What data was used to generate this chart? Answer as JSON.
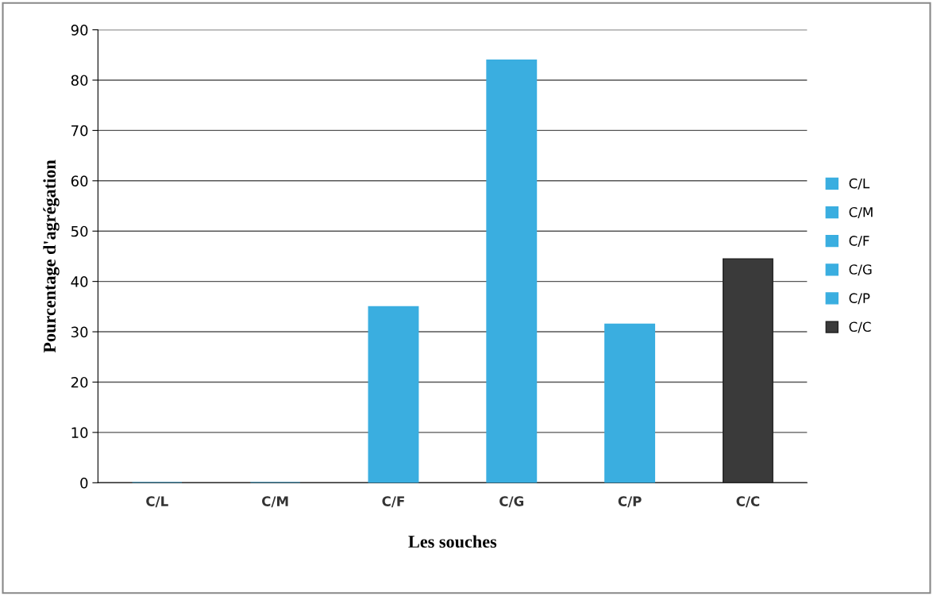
{
  "chart_data": {
    "type": "bar",
    "xlabel": "Les souches",
    "ylabel": "Pourcentage d'agrégation",
    "categories": [
      "C/L",
      "C/M",
      "C/F",
      "C/G",
      "C/P",
      "C/C"
    ],
    "stacked": true,
    "series": [
      {
        "name": "C/L",
        "color": "#3aaee0",
        "values": [
          0,
          null,
          null,
          null,
          null,
          null
        ]
      },
      {
        "name": "C/M",
        "color": "#3aaee0",
        "values": [
          null,
          0,
          null,
          null,
          null,
          null
        ]
      },
      {
        "name": "C/F",
        "color": "#3aaee0",
        "values": [
          null,
          null,
          35,
          null,
          null,
          null
        ]
      },
      {
        "name": "C/G",
        "color": "#3aaee0",
        "values": [
          null,
          null,
          null,
          84,
          null,
          null
        ]
      },
      {
        "name": "C/P",
        "color": "#3aaee0",
        "values": [
          null,
          null,
          null,
          null,
          31.5,
          null
        ]
      },
      {
        "name": "C/C",
        "color": "#3a3a3a",
        "values": [
          null,
          null,
          null,
          null,
          null,
          44.5
        ]
      }
    ],
    "ylim": [
      0,
      90
    ],
    "yticks": [
      0,
      10,
      20,
      30,
      40,
      50,
      60,
      70,
      80,
      90
    ],
    "grid": "y",
    "legend": "right"
  }
}
